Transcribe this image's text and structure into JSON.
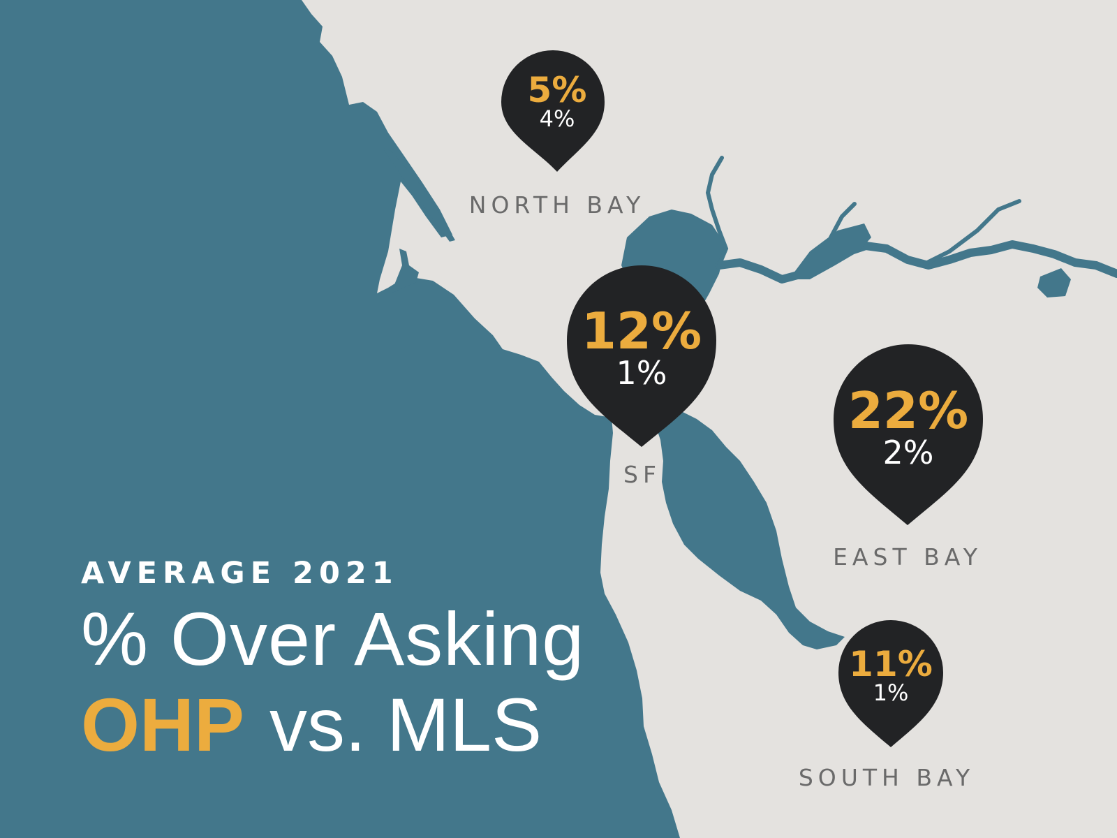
{
  "title": {
    "eyebrow": "AVERAGE 2021",
    "line1": "% Over Asking",
    "highlight": "OHP",
    "line2_rest": "vs. MLS"
  },
  "colors": {
    "water": "#43778b",
    "land": "#e4e2df",
    "pin": "#222325",
    "accent": "#ecac3e",
    "label": "#6a6a6a"
  },
  "regions": [
    {
      "name": "NORTH BAY",
      "ohp": "5%",
      "mls": "4%"
    },
    {
      "name": "SF",
      "ohp": "12%",
      "mls": "1%"
    },
    {
      "name": "EAST BAY",
      "ohp": "22%",
      "mls": "2%"
    },
    {
      "name": "SOUTH BAY",
      "ohp": "11%",
      "mls": "1%"
    }
  ]
}
